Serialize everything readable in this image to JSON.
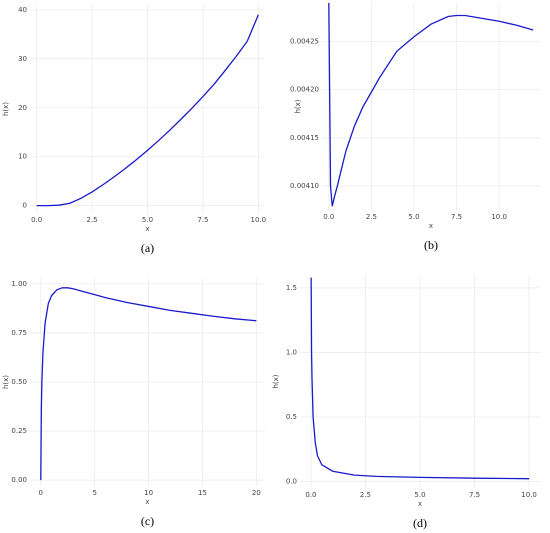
{
  "chart_data": [
    {
      "type": "line",
      "caption": "(a)",
      "xlabel": "x",
      "ylabel": "h(x)",
      "color": "#1a1acc",
      "grid": true,
      "x": [
        0,
        0.5,
        1,
        1.5,
        2,
        2.5,
        3,
        3.5,
        4,
        4.5,
        5,
        5.5,
        6,
        6.5,
        7,
        7.5,
        8,
        8.5,
        9,
        9.5,
        10
      ],
      "values": [
        0,
        0,
        0.1,
        0.5,
        1.5,
        2.8,
        4.3,
        5.9,
        7.6,
        9.4,
        11.3,
        13.3,
        15.4,
        17.6,
        19.9,
        22.3,
        24.8,
        27.6,
        30.5,
        33.6,
        39
      ],
      "xlim": [
        -0.3,
        10.3
      ],
      "ylim": [
        -1.5,
        41
      ],
      "xticks": [
        {
          "value": 0,
          "label": "0.0"
        },
        2.5,
        {
          "value": 5,
          "label": "5.0"
        },
        7.5,
        {
          "value": 10,
          "label": "10.0"
        }
      ],
      "yticks": [
        0,
        10,
        20,
        30,
        40
      ]
    },
    {
      "type": "line",
      "caption": "(b)",
      "xlabel": "x",
      "ylabel": "h(x)",
      "color": "#1a1acc",
      "grid": true,
      "x": [
        0,
        0.1,
        0.2,
        0.35,
        0.5,
        1,
        1.5,
        2,
        3,
        4,
        5,
        6,
        7,
        7.5,
        8,
        9,
        10,
        11,
        12
      ],
      "values": [
        0.00429,
        0.0041,
        0.004079,
        0.00409,
        0.0041,
        0.004136,
        0.004162,
        0.004182,
        0.004213,
        0.00424,
        0.004255,
        0.004268,
        0.004276,
        0.004277,
        0.004277,
        0.004274,
        0.004271,
        0.004267,
        0.004262
      ],
      "xlim": [
        -0.4,
        12.4
      ],
      "ylim": [
        0.004075,
        0.00429
      ],
      "xticks": [
        {
          "value": 0,
          "label": "0.0"
        },
        2.5,
        {
          "value": 5,
          "label": "5.0"
        },
        7.5,
        {
          "value": 10,
          "label": "10.0"
        }
      ],
      "yticks": [
        {
          "value": 0.0041,
          "label": "0.00410"
        },
        {
          "value": 0.00415,
          "label": "0.00415"
        },
        {
          "value": 0.0042,
          "label": "0.00420"
        },
        {
          "value": 0.00425,
          "label": "0.00425"
        }
      ]
    },
    {
      "type": "line",
      "caption": "(c)",
      "xlabel": "x",
      "ylabel": "h(x)",
      "color": "#1a1acc",
      "grid": true,
      "x": [
        0,
        0.05,
        0.1,
        0.2,
        0.4,
        0.7,
        1,
        1.5,
        2,
        2.5,
        3,
        4,
        5,
        6,
        8,
        10,
        12,
        14,
        16,
        18,
        20
      ],
      "values": [
        0,
        0.35,
        0.5,
        0.65,
        0.8,
        0.9,
        0.94,
        0.97,
        0.98,
        0.98,
        0.975,
        0.96,
        0.945,
        0.93,
        0.905,
        0.885,
        0.865,
        0.85,
        0.835,
        0.822,
        0.812
      ],
      "xlim": [
        -1,
        20.8
      ],
      "ylim": [
        -0.03,
        1.03
      ],
      "xticks": [
        0,
        5,
        10,
        15,
        20
      ],
      "yticks": [
        {
          "value": 0,
          "label": "0.00"
        },
        0.25,
        {
          "value": 0.5,
          "label": "0.50"
        },
        0.75,
        {
          "value": 1,
          "label": "1.00"
        }
      ]
    },
    {
      "type": "line",
      "caption": "(d)",
      "xlabel": "x",
      "ylabel": "h(x)",
      "color": "#1a1acc",
      "grid": true,
      "x": [
        0.01,
        0.03,
        0.05,
        0.1,
        0.2,
        0.3,
        0.5,
        1,
        2,
        3,
        5,
        7.5,
        10
      ],
      "values": [
        1.58,
        1.0,
        0.8,
        0.5,
        0.3,
        0.2,
        0.13,
        0.08,
        0.05,
        0.04,
        0.032,
        0.026,
        0.022
      ],
      "xlim": [
        -0.5,
        10.5
      ],
      "ylim": [
        -0.05,
        1.6
      ],
      "xticks": [
        {
          "value": 0,
          "label": "0.0"
        },
        2.5,
        {
          "value": 5,
          "label": "5.0"
        },
        7.5,
        {
          "value": 10,
          "label": "10.0"
        }
      ],
      "yticks": [
        {
          "value": 0,
          "label": "0.0"
        },
        0.5,
        {
          "value": 1,
          "label": "1.0"
        },
        1.5
      ]
    }
  ]
}
